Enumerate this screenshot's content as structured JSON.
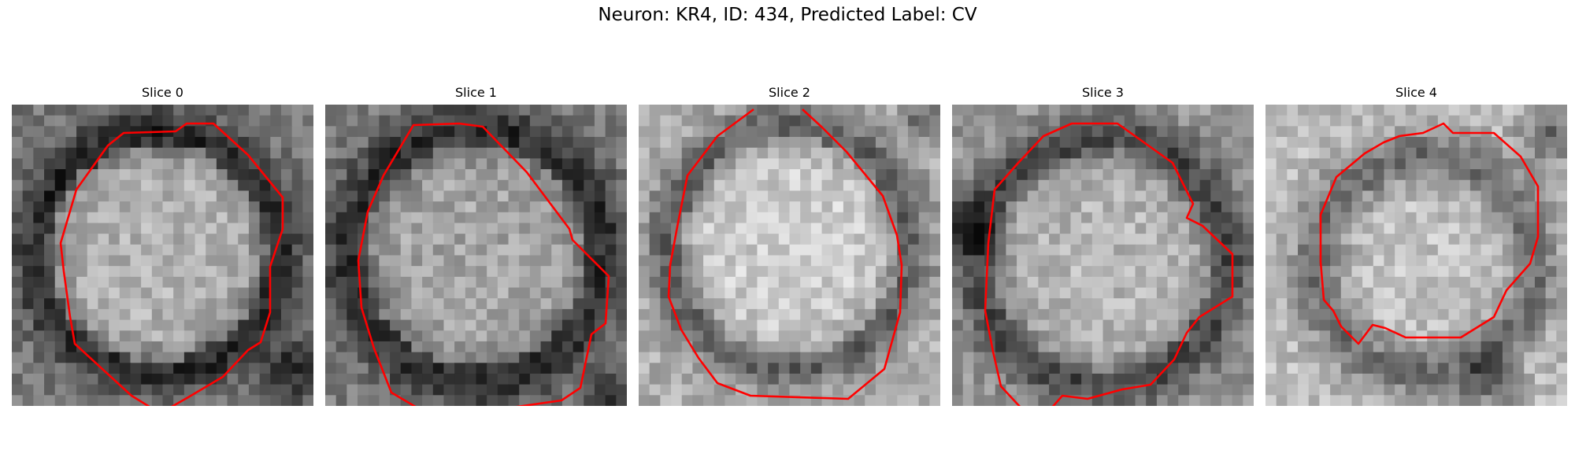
{
  "figure": {
    "title": "Neuron: KR4, ID: 434, Predicted Label: CV"
  },
  "panels": [
    {
      "title": "Slice 0"
    },
    {
      "title": "Slice 1"
    },
    {
      "title": "Slice 2"
    },
    {
      "title": "Slice 3"
    },
    {
      "title": "Slice 4"
    }
  ],
  "colors": {
    "contour": "#ff0000",
    "background": "#ffffff"
  },
  "colormap": "grayscale"
}
